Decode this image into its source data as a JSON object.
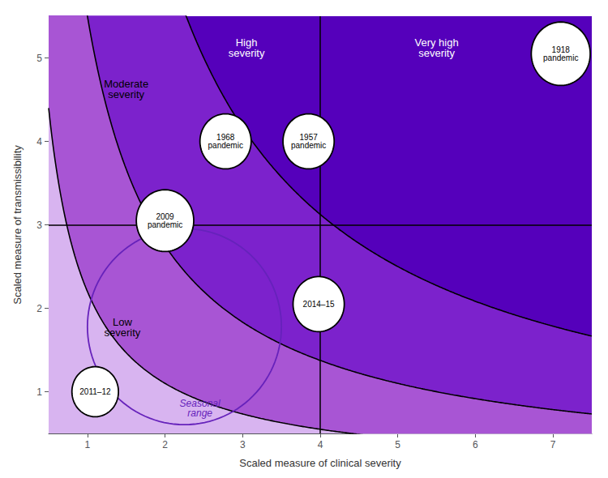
{
  "chart_data": {
    "type": "scatter",
    "xlabel": "Scaled measure of clinical severity",
    "ylabel": "Scaled measure of transmissibility",
    "xlim": [
      0.5,
      7.5
    ],
    "ylim": [
      0.5,
      5.5
    ],
    "xticks": [
      1,
      2,
      3,
      4,
      5,
      6,
      7
    ],
    "yticks": [
      1,
      2,
      3,
      4,
      5
    ],
    "grid": false,
    "zones": {
      "colors": [
        "#d8b4f0",
        "#a855d4",
        "#7c22cc",
        "#5500bb"
      ]
    },
    "curves": {
      "k": [
        2.2,
        5.5,
        12.5
      ],
      "color": "#000000"
    },
    "quadrant_lines": {
      "y": 3.0,
      "x": 4.0,
      "color": "#000000"
    },
    "ellipse": {
      "cx": 2.25,
      "cy": 1.78,
      "width": 2.5,
      "height": 2.35,
      "color": "#6622bb",
      "label": {
        "text": "Seasonal\nrange",
        "x": 2.45,
        "y": 0.92
      }
    },
    "annotations": [
      {
        "text": "Low\nseverity",
        "x": 1.45,
        "y": 1.9,
        "color": "#000000"
      },
      {
        "text": "Moderate\nseverity",
        "x": 1.5,
        "y": 4.75,
        "color": "#000000"
      },
      {
        "text": "High\nseverity",
        "x": 3.05,
        "y": 5.25,
        "color": "#ffffff"
      },
      {
        "text": "Very high\nseverity",
        "x": 5.5,
        "y": 5.25,
        "color": "#ffffff"
      }
    ],
    "points": {
      "color": "#ffffff",
      "items": [
        {
          "label": "1918\npandemic",
          "x": 7.1,
          "y": 5.05,
          "radius": 0.38
        },
        {
          "label": "1957\npandemic",
          "x": 3.85,
          "y": 4.0,
          "radius": 0.33
        },
        {
          "label": "1968\npandemic",
          "x": 2.78,
          "y": 4.0,
          "radius": 0.33
        },
        {
          "label": "2009\npandemic",
          "x": 2.0,
          "y": 3.05,
          "radius": 0.37
        },
        {
          "label": "2014–15",
          "x": 3.98,
          "y": 2.05,
          "radius": 0.33
        },
        {
          "label": "2011–12",
          "x": 1.1,
          "y": 1.0,
          "radius": 0.3
        }
      ]
    }
  }
}
